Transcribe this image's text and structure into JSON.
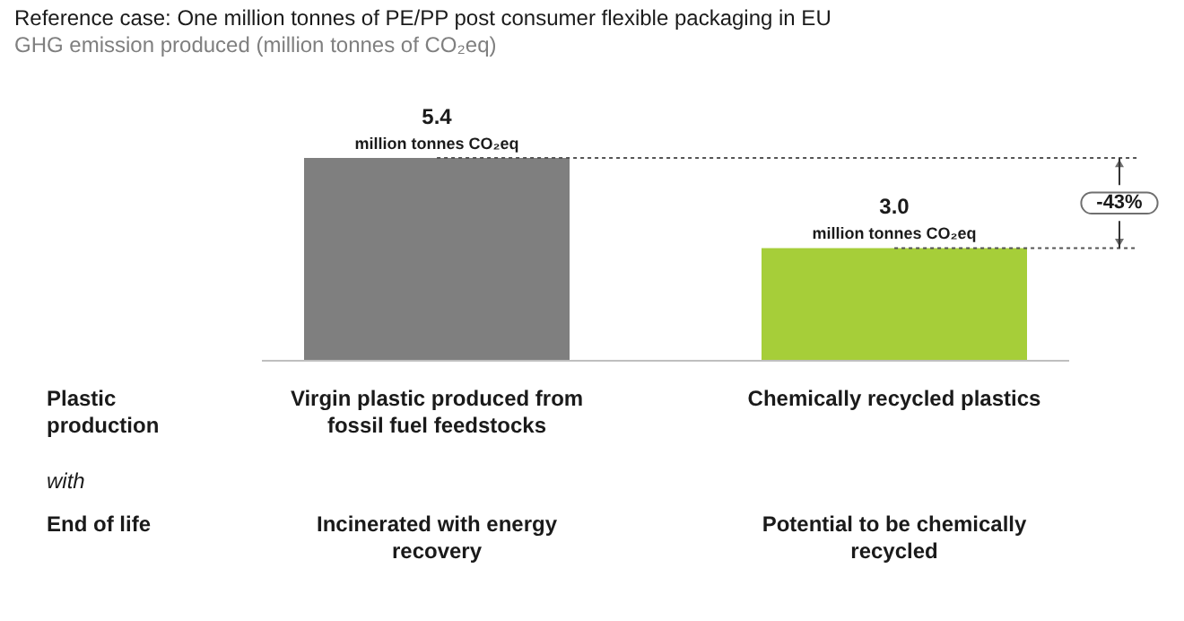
{
  "chart_data": {
    "type": "bar",
    "title": "Reference case: One million tonnes of PE/PP post consumer flexible packaging in EU",
    "subtitle": "GHG emission produced (million tonnes of CO₂eq)",
    "categories": [
      "Virgin plastic produced from fossil fuel feedstocks",
      "Chemically recycled plastics"
    ],
    "values": [
      5.4,
      3.0
    ],
    "colors": [
      "#7f7f7f",
      "#a6ce39"
    ],
    "tick_labels": "x",
    "value_labels": [
      "5.4",
      "3.0"
    ],
    "ref_lines": [
      {
        "axis": "y",
        "value": 5.4,
        "color": "#555555",
        "line_style": "dotted"
      },
      {
        "axis": "y",
        "value": 3.0,
        "color": "#555555",
        "line_style": "dotted"
      }
    ],
    "annotations": [
      {
        "text": "million tonnes CO₂eq",
        "x": "Virgin plastic produced from fossil fuel feedstocks",
        "y": 5.4
      },
      {
        "text": "million tonnes CO₂eq",
        "x": "Chemically recycled plastics",
        "y": 3.0
      },
      "-43%",
      "Plastic production",
      "with",
      "End of life",
      "Incinerated with energy recovery",
      "Potential to be chemically recycled"
    ]
  }
}
